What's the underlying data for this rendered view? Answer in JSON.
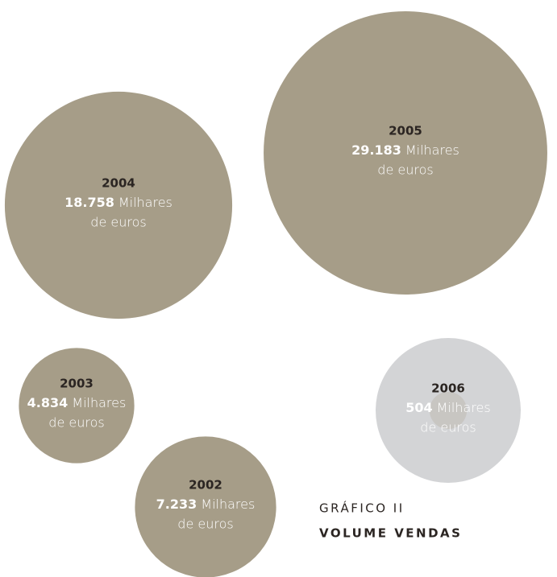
{
  "chart_data": {
    "type": "bubble",
    "title": "GRÁFICO II",
    "subtitle": "VOLUME VENDAS",
    "unit_lines": [
      "Milhares",
      "de euros"
    ],
    "categories": [
      "2002",
      "2003",
      "2004",
      "2005",
      "2006"
    ],
    "values": [
      7233,
      4834,
      18758,
      29183,
      504
    ],
    "value_labels": [
      "7.233",
      "4.834",
      "18.758",
      "29.183",
      "504"
    ],
    "color": "#a69d88",
    "highlight_color": "#d3d4d6"
  }
}
